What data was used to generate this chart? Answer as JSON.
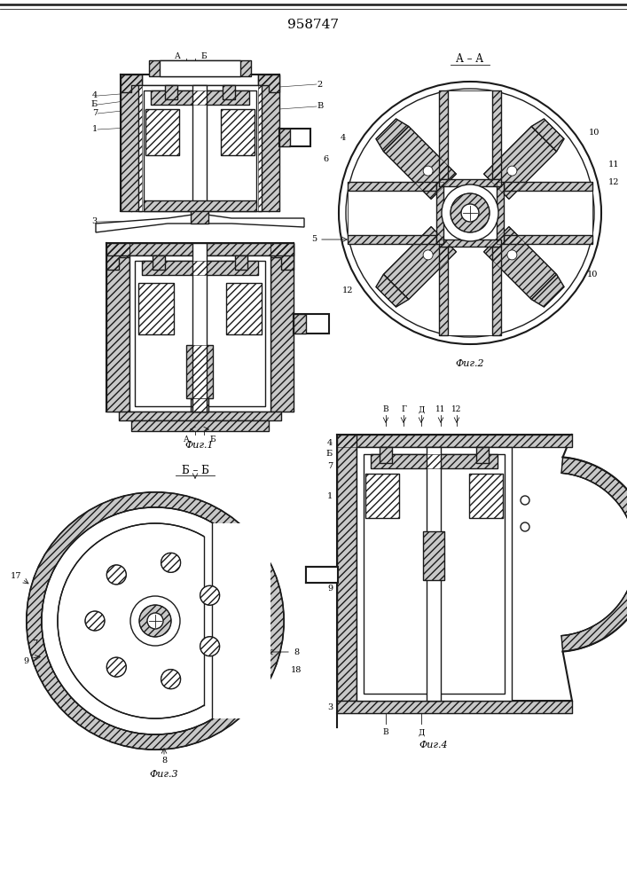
{
  "title": "958747",
  "bg_color": "#ffffff",
  "lc": "#1a1a1a",
  "fig1_caption": "Фиг.1",
  "fig2_caption": "Фиг.2",
  "fig3_caption": "Фиг.3",
  "fig4_caption": "Фиг.4",
  "fig2_label": "А – А",
  "fig3_label": "Б – Б",
  "hatch_gray": "#c8c8c8",
  "light_gray": "#e8e8e8"
}
